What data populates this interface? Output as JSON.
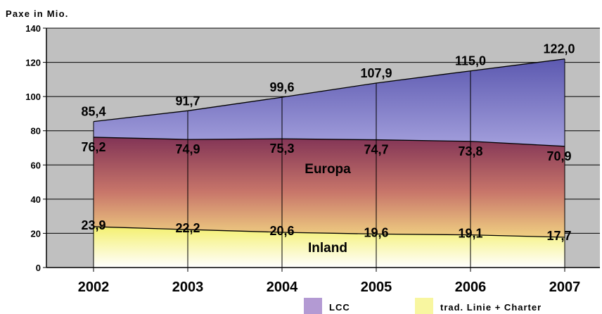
{
  "chart_data": {
    "type": "area",
    "ylabel": "Paxe in Mio.",
    "ylim": [
      0,
      140
    ],
    "yticks": [
      0,
      20,
      40,
      60,
      80,
      100,
      120,
      140
    ],
    "categories": [
      "2002",
      "2003",
      "2004",
      "2005",
      "2006",
      "2007"
    ],
    "series": [
      {
        "key": "inland",
        "values": [
          23.9,
          22.2,
          20.6,
          19.6,
          19.1,
          17.7
        ],
        "labels": [
          "23,9",
          "22,2",
          "20,6",
          "19,6",
          "19,1",
          "17,7"
        ]
      },
      {
        "key": "europa",
        "values": [
          76.2,
          74.9,
          75.3,
          74.7,
          73.8,
          70.9
        ],
        "labels": [
          "76,2",
          "74,9",
          "75,3",
          "74,7",
          "73,8",
          "70,9"
        ]
      },
      {
        "key": "total",
        "values": [
          85.4,
          91.7,
          99.6,
          107.9,
          115.0,
          122.0
        ],
        "labels": [
          "85,4",
          "91,7",
          "99,6",
          "107,9",
          "115,0",
          "122,0"
        ]
      }
    ],
    "region_labels": {
      "europa": "Europa",
      "inland": "Inland"
    },
    "legend": [
      {
        "name": "LCC",
        "color": "#b39ad3"
      },
      {
        "name": "trad. Linie + Charter",
        "color": "#f8f6a0"
      }
    ],
    "legend_position": "bottom",
    "grid": true,
    "colors": {
      "plot_bg": "#c0c0c0",
      "lcc_top": "#5c59b0",
      "lcc_bottom": "#a39fdc",
      "europa_top": "#823456",
      "europa_bottom": "#f0d082",
      "inland_top": "#f4f070",
      "inland_bottom": "#ffffff"
    }
  }
}
